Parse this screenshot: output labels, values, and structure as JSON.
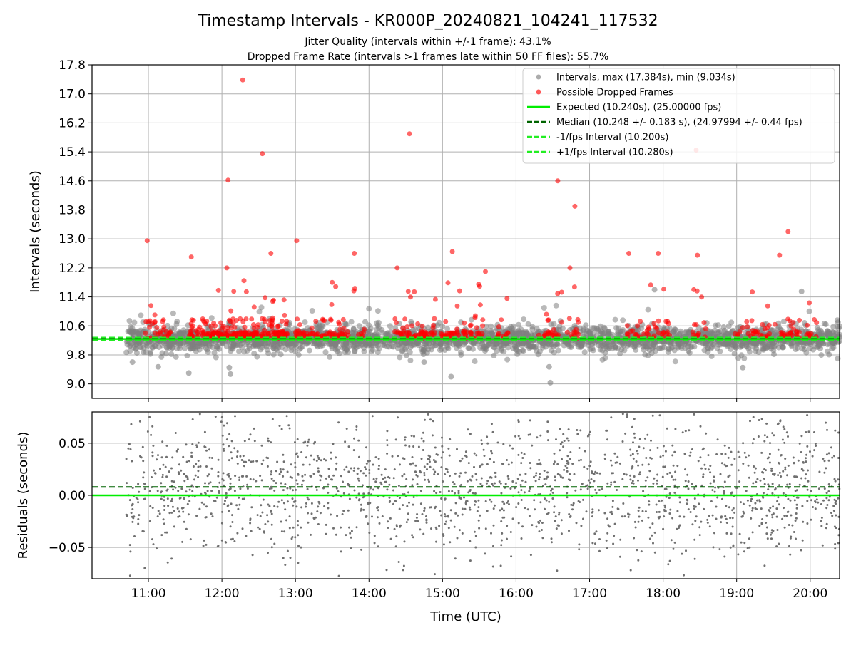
{
  "chart_data": [
    {
      "type": "scatter",
      "title": "Timestamp Intervals - KR000P_20240821_104241_117532",
      "subtitle_lines": [
        "Jitter Quality (intervals within +/-1 frame): 43.1%",
        "Dropped Frame Rate (intervals >1 frames late within 50 FF files): 55.7%"
      ],
      "xlabel": "",
      "ylabel": "Intervals (seconds)",
      "xlim": [
        "10:14",
        "20:24"
      ],
      "ylim": [
        8.6,
        17.8
      ],
      "yticks": [
        "9.0",
        "9.8",
        "10.6",
        "11.4",
        "12.2",
        "13.0",
        "13.8",
        "14.6",
        "15.4",
        "16.2",
        "17.0",
        "17.8"
      ],
      "grid": true,
      "legend_position": "upper-right",
      "legend": [
        {
          "label": "Intervals, max (17.384s), min (9.034s)",
          "marker": "circle",
          "color": "#808080"
        },
        {
          "label": "Possible Dropped Frames",
          "marker": "circle",
          "color": "#ff0000"
        },
        {
          "label": "Expected (10.240s), (25.00000 fps)",
          "line": "solid",
          "color": "#00ee00"
        },
        {
          "label": "Median (10.248 +/- 0.183 s), (24.97994 +/- 0.44 fps)",
          "line": "dashed",
          "color": "#006400"
        },
        {
          "label": "-1/fps Interval (10.200s)",
          "line": "dashed",
          "color": "#22ee22"
        },
        {
          "label": "+1/fps Interval (10.280s)",
          "line": "dashed",
          "color": "#22ee22"
        }
      ],
      "reference_lines": {
        "expected": 10.24,
        "median": 10.248,
        "minus_one_frame": 10.2,
        "plus_one_frame": 10.28
      },
      "series": [
        {
          "name": "Intervals, max (17.384s), min (9.034s)",
          "color": "#808080",
          "x_range": [
            "10:42",
            "20:24"
          ],
          "count_note": "dense cloud of several thousand points around 10.24",
          "points_sample": [
            [
              "10:47",
              9.6
            ],
            [
              "11:08",
              9.47
            ],
            [
              "11:33",
              9.3
            ],
            [
              "12:06",
              9.45
            ],
            [
              "12:07",
              9.27
            ],
            [
              "14:45",
              9.6
            ],
            [
              "15:07",
              9.2
            ],
            [
              "16:28",
              9.034
            ],
            [
              "16:27",
              9.47
            ],
            [
              "17:53",
              11.6
            ],
            [
              "19:53",
              11.55
            ],
            [
              "19:05",
              9.45
            ]
          ]
        },
        {
          "name": "Possible Dropped Frames",
          "color": "#ff0000",
          "points_sample": [
            [
              "12:17",
              17.384
            ],
            [
              "14:33",
              15.9
            ],
            [
              "12:33",
              15.35
            ],
            [
              "18:27",
              15.45
            ],
            [
              "12:05",
              14.62
            ],
            [
              "16:34",
              14.6
            ],
            [
              "16:48",
              13.9
            ],
            [
              "10:59",
              12.95
            ],
            [
              "13:01",
              12.95
            ],
            [
              "19:42",
              13.2
            ],
            [
              "11:35",
              12.5
            ],
            [
              "12:40",
              12.6
            ],
            [
              "13:48",
              12.6
            ],
            [
              "15:08",
              12.65
            ],
            [
              "17:32",
              12.6
            ],
            [
              "17:56",
              12.6
            ],
            [
              "18:28",
              12.55
            ],
            [
              "16:44",
              12.2
            ],
            [
              "14:23",
              12.2
            ],
            [
              "15:35",
              12.1
            ],
            [
              "19:35",
              12.55
            ],
            [
              "12:04",
              12.2
            ],
            [
              "14:32",
              11.55
            ],
            [
              "12:18",
              11.85
            ],
            [
              "13:30",
              11.8
            ],
            [
              "18:25",
              11.6
            ]
          ]
        }
      ]
    },
    {
      "type": "scatter",
      "title": "",
      "xlabel": "Time (UTC)",
      "ylabel": "Residuals (seconds)",
      "xlim": [
        "10:14",
        "20:24"
      ],
      "ylim": [
        -0.08,
        0.08
      ],
      "xticks": [
        "11:00",
        "12:00",
        "13:00",
        "14:00",
        "15:00",
        "16:00",
        "17:00",
        "18:00",
        "19:00",
        "20:00"
      ],
      "yticks": [
        "−0.05",
        "0.00",
        "0.05"
      ],
      "grid": true,
      "reference_lines": {
        "expected": 0.0,
        "median": 0.008
      },
      "series": [
        {
          "name": "",
          "color": "#808080",
          "x_range": [
            "10:42",
            "20:24"
          ],
          "count_note": "residuals of intervals, roughly uniform scatter between -0.08 and 0.08, concentrated near 0.01"
        }
      ]
    }
  ]
}
